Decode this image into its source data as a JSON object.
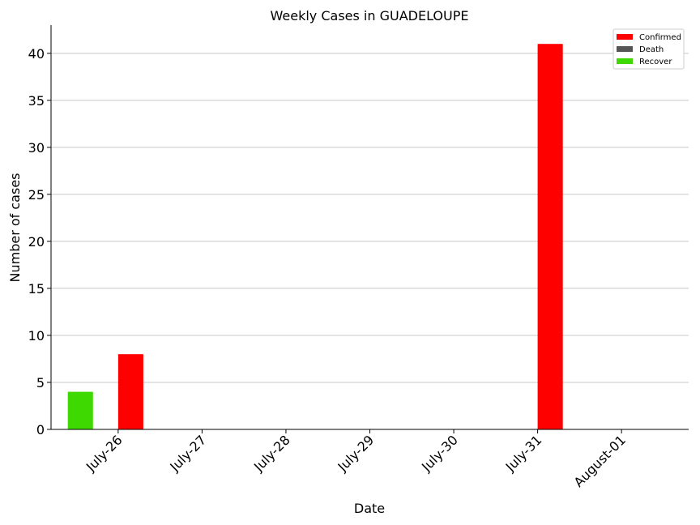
{
  "chart_data": {
    "type": "bar",
    "title": "Weekly Cases in GUADELOUPE",
    "xlabel": "Date",
    "ylabel": "Number of cases",
    "categories": [
      "July-26",
      "July-27",
      "July-28",
      "July-29",
      "July-30",
      "July-31",
      "August-01"
    ],
    "series": [
      {
        "name": "Confirmed",
        "color": "#ff0000",
        "values": [
          8,
          0,
          0,
          0,
          0,
          41,
          0
        ]
      },
      {
        "name": "Death",
        "color": "#555555",
        "values": [
          0,
          0,
          0,
          0,
          0,
          0,
          0
        ]
      },
      {
        "name": "Recover",
        "color": "#3fd902",
        "values": [
          4,
          0,
          0,
          0,
          0,
          0,
          0
        ]
      }
    ],
    "ylim": [
      0,
      43
    ],
    "yticks": [
      0,
      5,
      10,
      15,
      20,
      25,
      30,
      35,
      40
    ],
    "grid": "horizontal",
    "legend_position": "top-right"
  }
}
